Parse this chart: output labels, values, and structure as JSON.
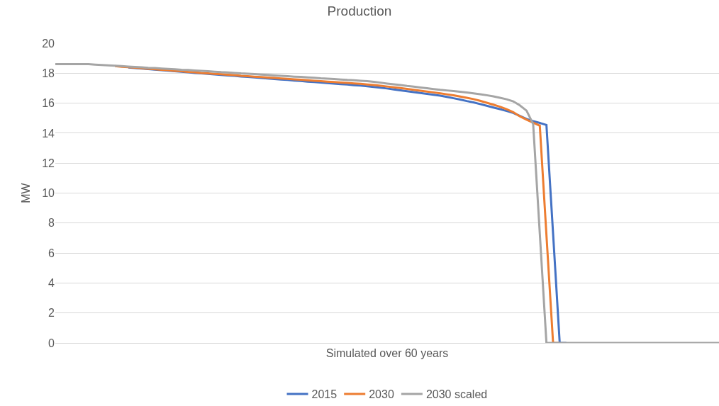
{
  "chart_data": {
    "type": "line",
    "title": "Production",
    "xlabel": "Simulated over 60 years",
    "ylabel": "MW",
    "categories": [
      null,
      null,
      null,
      null,
      null,
      null,
      null,
      null,
      null,
      null,
      null,
      null,
      null,
      null,
      null,
      null,
      null,
      null,
      null,
      null,
      null,
      null,
      null,
      null,
      null,
      null,
      null,
      null,
      null,
      null,
      null,
      null,
      null,
      null,
      null,
      null,
      null,
      null,
      null,
      null,
      null,
      null,
      null,
      null,
      null,
      null,
      null,
      null,
      null,
      null,
      null,
      null,
      null,
      null,
      null,
      null,
      null,
      null,
      null,
      null,
      null,
      null,
      null,
      null,
      null,
      null,
      null,
      null,
      null,
      null,
      null,
      null,
      null,
      null,
      null,
      null,
      null,
      null,
      null,
      null,
      null,
      null,
      null,
      null,
      null,
      null,
      null,
      null,
      null,
      null,
      null,
      null,
      null,
      null,
      null,
      null,
      null,
      null,
      null,
      null,
      null
    ],
    "series": [
      {
        "name": "2015",
        "color": "#4472c4",
        "values": [
          null,
          null,
          null,
          null,
          null,
          null,
          null,
          null,
          null,
          null,
          null,
          18.38,
          18.35,
          18.31,
          18.28,
          18.24,
          18.2,
          18.17,
          18.13,
          18.1,
          18.06,
          18.02,
          17.99,
          17.95,
          17.92,
          17.89,
          17.85,
          17.82,
          17.78,
          17.75,
          17.72,
          17.68,
          17.65,
          17.61,
          17.58,
          17.55,
          17.51,
          17.48,
          17.44,
          17.41,
          17.38,
          17.34,
          17.31,
          17.27,
          17.24,
          17.2,
          17.17,
          17.13,
          17.08,
          17.03,
          16.98,
          16.92,
          16.86,
          16.8,
          16.74,
          16.68,
          16.62,
          16.56,
          16.5,
          16.42,
          16.33,
          16.24,
          16.14,
          16.05,
          15.94,
          15.83,
          15.71,
          15.6,
          15.48,
          15.35,
          15.15,
          14.95,
          14.8,
          14.68,
          14.55,
          7.3,
          0,
          0,
          null,
          null,
          null,
          null,
          null,
          null,
          null,
          null,
          null,
          null,
          null,
          null,
          null,
          null,
          null,
          null,
          null,
          null,
          null,
          null,
          null,
          null,
          null
        ]
      },
      {
        "name": "2030",
        "color": "#ed7d31",
        "values": [
          null,
          null,
          null,
          null,
          null,
          null,
          null,
          null,
          null,
          18.47,
          18.43,
          18.4,
          18.37,
          18.33,
          18.3,
          18.26,
          18.23,
          18.2,
          18.16,
          18.13,
          18.09,
          18.06,
          18.02,
          17.99,
          17.96,
          17.93,
          17.9,
          17.87,
          17.83,
          17.8,
          17.77,
          17.74,
          17.71,
          17.68,
          17.65,
          17.62,
          17.59,
          17.56,
          17.53,
          17.5,
          17.47,
          17.44,
          17.41,
          17.38,
          17.35,
          17.32,
          17.29,
          17.25,
          17.21,
          17.16,
          17.11,
          17.06,
          17.01,
          16.95,
          16.89,
          16.83,
          16.77,
          16.72,
          16.66,
          16.59,
          16.52,
          16.44,
          16.36,
          16.27,
          16.16,
          16.03,
          15.9,
          15.76,
          15.6,
          15.4,
          15.12,
          14.9,
          14.7,
          14.5,
          7.2,
          0,
          0,
          null,
          null,
          null,
          null,
          null,
          null,
          null,
          null,
          null,
          null,
          null,
          null,
          null,
          null,
          null,
          null,
          null,
          null,
          null,
          null,
          null,
          null,
          null,
          null
        ]
      },
      {
        "name": "2030 scaled",
        "color": "#a5a5a5",
        "values": [
          18.6,
          18.6,
          18.6,
          18.6,
          18.6,
          18.6,
          18.57,
          18.55,
          18.52,
          18.5,
          18.47,
          18.44,
          18.42,
          18.39,
          18.36,
          18.34,
          18.31,
          18.29,
          18.26,
          18.23,
          18.21,
          18.18,
          18.16,
          18.13,
          18.1,
          18.07,
          18.05,
          18.02,
          17.99,
          17.97,
          17.94,
          17.91,
          17.88,
          17.85,
          17.83,
          17.8,
          17.77,
          17.75,
          17.72,
          17.69,
          17.66,
          17.64,
          17.61,
          17.58,
          17.55,
          17.53,
          17.5,
          17.47,
          17.42,
          17.37,
          17.31,
          17.26,
          17.21,
          17.15,
          17.1,
          17.05,
          17.0,
          16.94,
          16.89,
          16.85,
          16.81,
          16.76,
          16.71,
          16.66,
          16.6,
          16.53,
          16.45,
          16.36,
          16.26,
          16.12,
          15.85,
          15.5,
          14.6,
          7.3,
          0,
          0,
          0,
          0,
          0,
          0,
          0,
          0,
          0,
          0,
          0,
          0,
          0,
          0,
          0,
          0,
          0,
          0,
          0,
          0,
          0,
          0,
          0,
          0,
          0,
          0,
          0
        ]
      }
    ],
    "ylim": [
      0,
      20
    ],
    "yticks": [
      0,
      2,
      4,
      6,
      8,
      10,
      12,
      14,
      16,
      18,
      20
    ],
    "grid": "y",
    "legend": "bottom",
    "tick_labels": "y"
  }
}
